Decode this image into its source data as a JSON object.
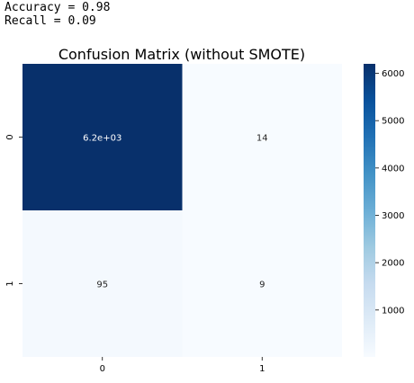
{
  "console_output": {
    "accuracy_line": "Accuracy = 0.98",
    "recall_line": "Recall = 0.09"
  },
  "colors": {
    "cmap_low": "#f7fbff",
    "cmap_high": "#08306b",
    "annot_light": "#ffffff",
    "annot_dark": "#262626"
  },
  "chart_data": {
    "type": "heatmap",
    "title": "Confusion Matrix (without SMOTE)",
    "colormap": "Blues",
    "x_categories": [
      "0",
      "1"
    ],
    "y_categories": [
      "0",
      "1"
    ],
    "values": [
      [
        6200,
        14
      ],
      [
        95,
        9
      ]
    ],
    "annotations": [
      [
        "6.2e+03",
        "14"
      ],
      [
        "95",
        "9"
      ]
    ],
    "colorbar": {
      "ticks": [
        1000,
        2000,
        3000,
        4000,
        5000,
        6000
      ],
      "tick_labels": [
        "1000",
        "2000",
        "3000",
        "4000",
        "5000",
        "6000"
      ],
      "range": [
        9,
        6200
      ]
    },
    "grid": false,
    "xlabel": "",
    "ylabel": ""
  }
}
